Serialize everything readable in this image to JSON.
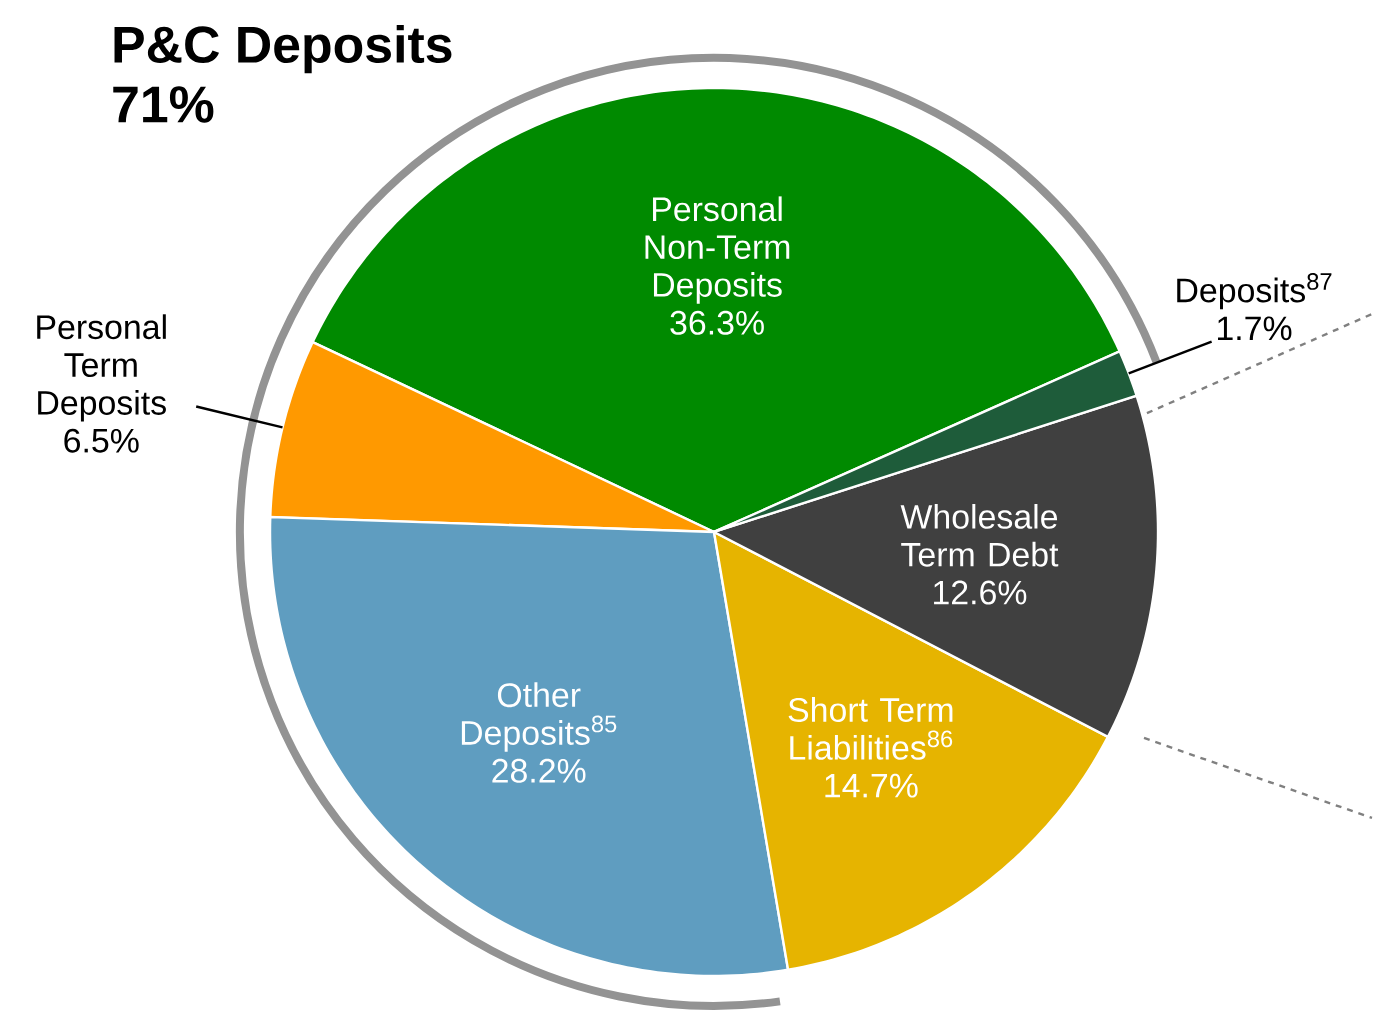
{
  "chart_data": {
    "type": "pie",
    "title": "P&C Deposits",
    "subtitle": "71%",
    "categories": [
      "Personal Non-Term Deposits",
      "Personal Term Deposits",
      "Other Deposits$^{85}$",
      "Short Term Liabilities$^{86}$",
      "Wholesale Term Debt",
      "Deposits$^{87}$"
    ],
    "values": [
      36.3,
      6.5,
      28.2,
      14.7,
      12.6,
      1.7
    ],
    "value_labels": [
      "36.3%",
      "6.5%",
      "28.2%",
      "14.7%",
      "12.6%",
      "1.7%"
    ],
    "colors": [
      "#008a00",
      "#ff9900",
      "#5f9dc0",
      "#e6b400",
      "#404040",
      "#1e5c3a"
    ]
  }
}
